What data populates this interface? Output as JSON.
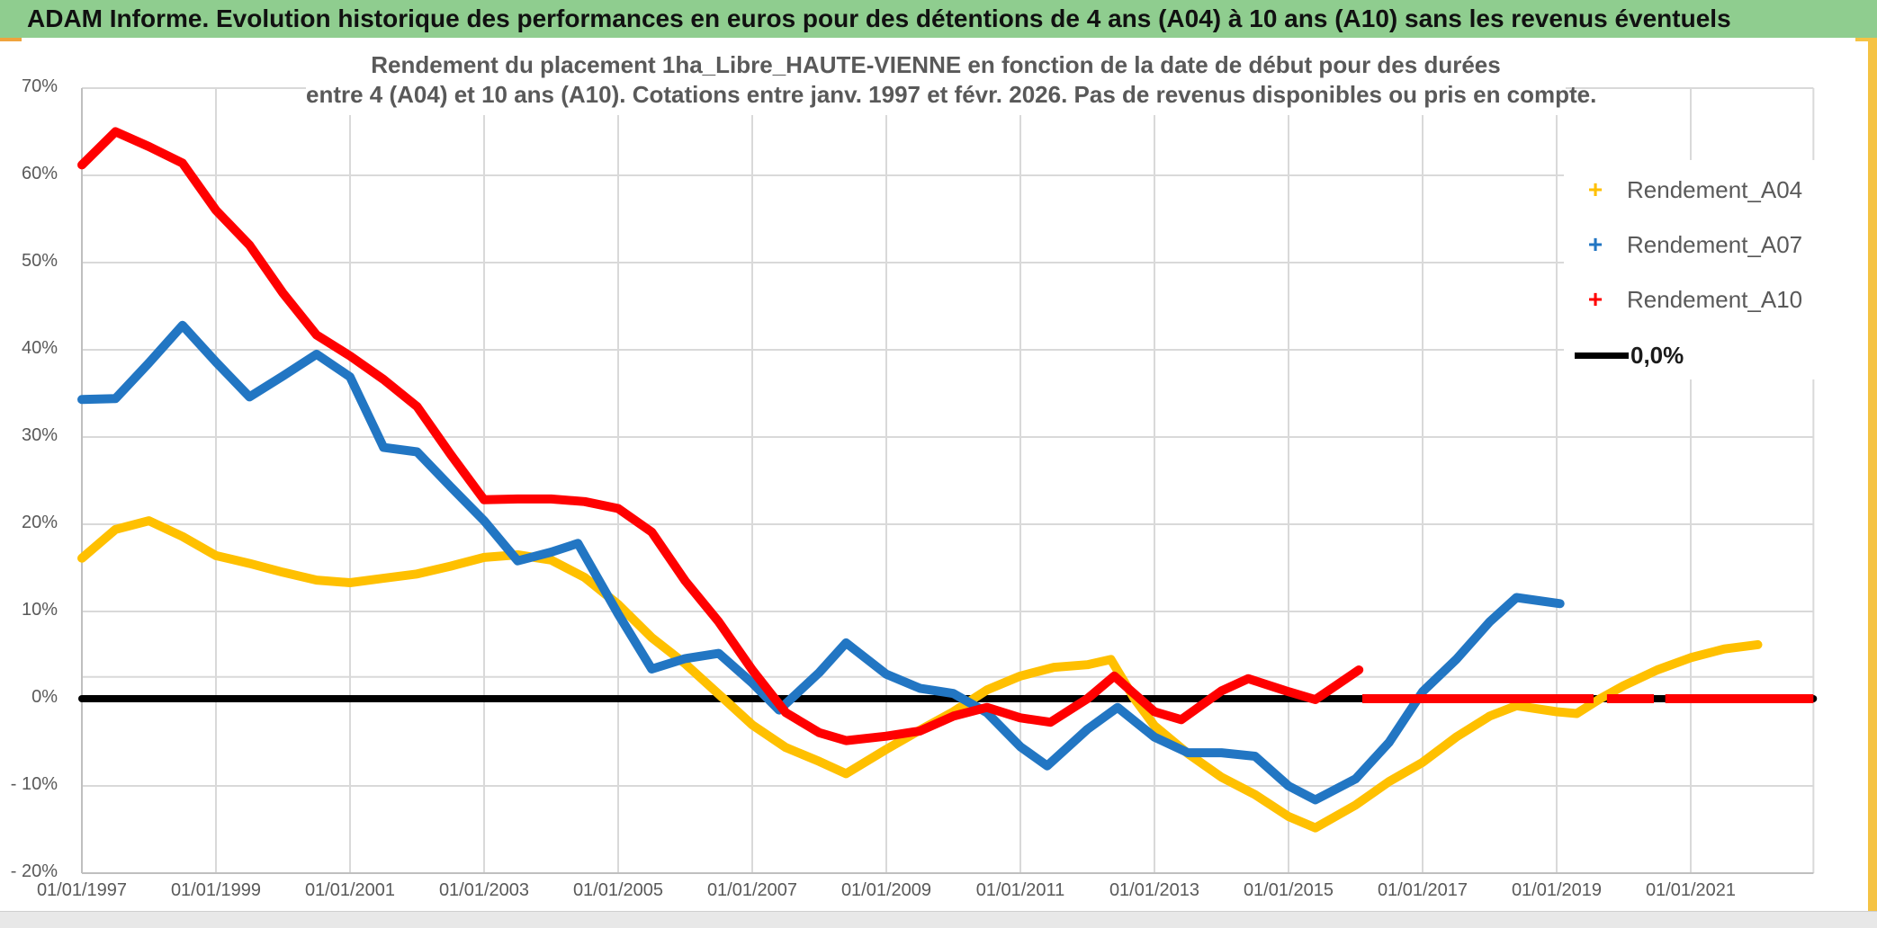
{
  "header": {
    "title": "ADAM Informe. Evolution historique des performances en euros pour des détentions de 4 ans (A04) à 10 ans (A10) sans les revenus éventuels"
  },
  "chart": {
    "title_line1": "Rendement du placement 1ha_Libre_HAUTE-VIENNE en fonction de la date de début pour des durées",
    "title_line2": "entre 4 (A04) et 10 ans (A10). Cotations entre janv. 1997 et févr. 2026. Pas de revenus disponibles ou pris en compte.",
    "legend": [
      {
        "label": "Rendement_A04",
        "marker": "plus",
        "color": "#FFC000"
      },
      {
        "label": "Rendement_A07",
        "marker": "plus",
        "color": "#2276C3"
      },
      {
        "label": "Rendement_A10",
        "marker": "plus",
        "color": "#FF0000"
      },
      {
        "label": "0,0%",
        "marker": "line",
        "color": "#000000"
      }
    ]
  },
  "chart_data": {
    "type": "line",
    "title": "Rendement du placement 1ha_Libre_HAUTE-VIENNE en fonction de la date de début pour des durées entre 4 (A04) et 10 ans (A10). Cotations entre janv. 1997 et févr. 2026. Pas de revenus disponibles ou pris en compte.",
    "x_axis": {
      "domain": [
        1997.0,
        2022.83
      ],
      "tick_years": [
        1997,
        1999,
        2001,
        2003,
        2005,
        2007,
        2009,
        2011,
        2013,
        2015,
        2017,
        2019,
        2021
      ],
      "tick_labels": [
        "01/01/1997",
        "01/01/1999",
        "01/01/2001",
        "01/01/2003",
        "01/01/2005",
        "01/01/2007",
        "01/01/2009",
        "01/01/2011",
        "01/01/2013",
        "01/01/2015",
        "01/01/2017",
        "01/01/2019",
        "01/01/2021"
      ]
    },
    "y_axis": {
      "min": -20,
      "max": 70,
      "step": 10,
      "unit": "%",
      "tick_labels": [
        "70%",
        "60%",
        "50%",
        "40%",
        "30%",
        "20%",
        "10%",
        "0%",
        "- 10%",
        "- 20%"
      ],
      "extra_gridline_pct": 2.5,
      "grid": true
    },
    "legend_position": "right",
    "series": [
      {
        "name": "Rendement_A04",
        "color": "#FFC000",
        "points": [
          [
            1997.0,
            16.1
          ],
          [
            1997.5,
            19.4
          ],
          [
            1998.0,
            20.4
          ],
          [
            1998.5,
            18.6
          ],
          [
            1999.0,
            16.4
          ],
          [
            1999.5,
            15.5
          ],
          [
            2000.0,
            14.5
          ],
          [
            2000.5,
            13.6
          ],
          [
            2001.0,
            13.3
          ],
          [
            2001.5,
            13.8
          ],
          [
            2002.0,
            14.3
          ],
          [
            2002.5,
            15.2
          ],
          [
            2003.0,
            16.2
          ],
          [
            2003.5,
            16.5
          ],
          [
            2004.0,
            15.9
          ],
          [
            2004.5,
            13.9
          ],
          [
            2005.0,
            10.8
          ],
          [
            2005.5,
            7.0
          ],
          [
            2006.0,
            4.0
          ],
          [
            2006.5,
            0.5
          ],
          [
            2007.0,
            -3.0
          ],
          [
            2007.5,
            -5.6
          ],
          [
            2008.0,
            -7.2
          ],
          [
            2008.4,
            -8.6
          ],
          [
            2009.0,
            -5.8
          ],
          [
            2009.5,
            -3.6
          ],
          [
            2010.0,
            -1.5
          ],
          [
            2010.5,
            1.0
          ],
          [
            2011.0,
            2.6
          ],
          [
            2011.5,
            3.6
          ],
          [
            2012.0,
            3.9
          ],
          [
            2012.35,
            4.5
          ],
          [
            2012.7,
            0.0
          ],
          [
            2013.0,
            -3.1
          ],
          [
            2013.5,
            -6.3
          ],
          [
            2014.0,
            -9.0
          ],
          [
            2014.5,
            -11.0
          ],
          [
            2015.0,
            -13.5
          ],
          [
            2015.4,
            -14.8
          ],
          [
            2016.0,
            -12.2
          ],
          [
            2016.5,
            -9.5
          ],
          [
            2017.0,
            -7.3
          ],
          [
            2017.5,
            -4.4
          ],
          [
            2018.0,
            -2.0
          ],
          [
            2018.4,
            -0.8
          ],
          [
            2019.0,
            -1.5
          ],
          [
            2019.3,
            -1.7
          ],
          [
            2019.65,
            0.0
          ],
          [
            2020.0,
            1.5
          ],
          [
            2020.5,
            3.3
          ],
          [
            2021.0,
            4.7
          ],
          [
            2021.5,
            5.7
          ],
          [
            2022.0,
            6.2
          ]
        ]
      },
      {
        "name": "Rendement_A07",
        "color": "#2276C3",
        "points": [
          [
            1997.0,
            34.3
          ],
          [
            1997.5,
            34.4
          ],
          [
            1998.0,
            38.5
          ],
          [
            1998.5,
            42.8
          ],
          [
            1999.0,
            38.6
          ],
          [
            1999.5,
            34.6
          ],
          [
            2000.0,
            37.0
          ],
          [
            2000.5,
            39.5
          ],
          [
            2001.0,
            36.9
          ],
          [
            2001.5,
            28.8
          ],
          [
            2002.0,
            28.3
          ],
          [
            2002.5,
            24.3
          ],
          [
            2003.0,
            20.4
          ],
          [
            2003.5,
            15.8
          ],
          [
            2004.0,
            16.8
          ],
          [
            2004.4,
            17.8
          ],
          [
            2005.0,
            9.7
          ],
          [
            2005.5,
            3.4
          ],
          [
            2006.0,
            4.6
          ],
          [
            2006.5,
            5.2
          ],
          [
            2007.0,
            1.8
          ],
          [
            2007.4,
            -1.3
          ],
          [
            2008.0,
            3.0
          ],
          [
            2008.4,
            6.4
          ],
          [
            2009.0,
            2.8
          ],
          [
            2009.5,
            1.2
          ],
          [
            2010.0,
            0.6
          ],
          [
            2010.5,
            -1.6
          ],
          [
            2011.0,
            -5.5
          ],
          [
            2011.4,
            -7.7
          ],
          [
            2012.0,
            -3.5
          ],
          [
            2012.45,
            -1.0
          ],
          [
            2013.0,
            -4.4
          ],
          [
            2013.5,
            -6.2
          ],
          [
            2014.0,
            -6.2
          ],
          [
            2014.5,
            -6.6
          ],
          [
            2015.0,
            -10.0
          ],
          [
            2015.4,
            -11.6
          ],
          [
            2016.0,
            -9.2
          ],
          [
            2016.5,
            -5.0
          ],
          [
            2017.0,
            0.8
          ],
          [
            2017.5,
            4.5
          ],
          [
            2018.0,
            8.8
          ],
          [
            2018.4,
            11.6
          ],
          [
            2019.05,
            10.9
          ]
        ]
      },
      {
        "name": "Rendement_A10",
        "color": "#FF0000",
        "points": [
          [
            1997.0,
            61.2
          ],
          [
            1997.5,
            65.0
          ],
          [
            1998.0,
            63.3
          ],
          [
            1998.5,
            61.4
          ],
          [
            1999.0,
            56.0
          ],
          [
            1999.5,
            52.0
          ],
          [
            2000.0,
            46.5
          ],
          [
            2000.5,
            41.7
          ],
          [
            2001.0,
            39.3
          ],
          [
            2001.5,
            36.6
          ],
          [
            2002.0,
            33.5
          ],
          [
            2002.5,
            28.0
          ],
          [
            2003.0,
            22.8
          ],
          [
            2003.5,
            22.9
          ],
          [
            2004.0,
            22.9
          ],
          [
            2004.5,
            22.6
          ],
          [
            2005.0,
            21.8
          ],
          [
            2005.5,
            19.1
          ],
          [
            2006.0,
            13.5
          ],
          [
            2006.5,
            8.8
          ],
          [
            2007.0,
            3.3
          ],
          [
            2007.5,
            -1.6
          ],
          [
            2008.0,
            -3.9
          ],
          [
            2008.4,
            -4.8
          ],
          [
            2009.0,
            -4.3
          ],
          [
            2009.5,
            -3.7
          ],
          [
            2010.0,
            -2.0
          ],
          [
            2010.5,
            -1.0
          ],
          [
            2011.0,
            -2.2
          ],
          [
            2011.45,
            -2.7
          ],
          [
            2012.0,
            0.0
          ],
          [
            2012.4,
            2.6
          ],
          [
            2013.0,
            -1.5
          ],
          [
            2013.4,
            -2.4
          ],
          [
            2014.0,
            0.9
          ],
          [
            2014.4,
            2.3
          ],
          [
            2015.0,
            0.8
          ],
          [
            2015.4,
            -0.1
          ],
          [
            2016.05,
            3.3
          ]
        ],
        "flat_zero_segments": [
          [
            2016.1,
            2019.55
          ],
          [
            2019.75,
            2020.45
          ],
          [
            2020.62,
            2022.83
          ]
        ]
      },
      {
        "name": "0,0%",
        "color": "#000000",
        "is_reference": true,
        "points": [
          [
            1997.0,
            0.0
          ],
          [
            2022.83,
            0.0
          ]
        ]
      }
    ]
  },
  "colors": {
    "header_green": "#8FCD8F",
    "accent_gold": "#F5C344",
    "grid": "#D9D9D9",
    "axis": "#BFBFBF",
    "text_gray": "#595959"
  }
}
